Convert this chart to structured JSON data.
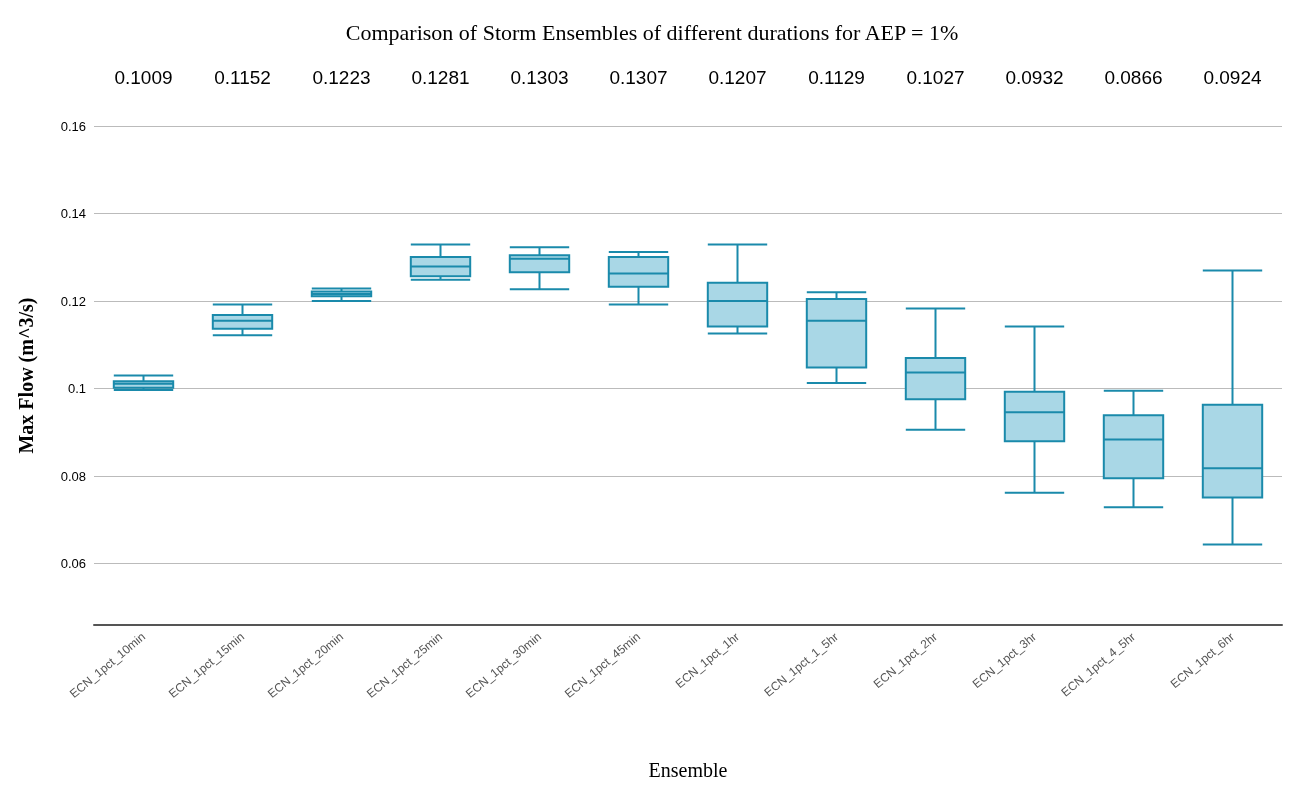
{
  "chart_data": {
    "type": "box",
    "title": "Comparison of Storm Ensembles of different durations for AEP = 1%",
    "xlabel": "Ensemble",
    "ylabel": "Max Flow (m^3/s)",
    "categories": [
      "ECN_1pct_10min",
      "ECN_1pct_15min",
      "ECN_1pct_20min",
      "ECN_1pct_25min",
      "ECN_1pct_30min",
      "ECN_1pct_45min",
      "ECN_1pct_1hr",
      "ECN_1pct_1_5hr",
      "ECN_1pct_2hr",
      "ECN_1pct_3hr",
      "ECN_1pct_4_5hr",
      "ECN_1pct_6hr"
    ],
    "annotations": [
      "0.1009",
      "0.1152",
      "0.1223",
      "0.1281",
      "0.1303",
      "0.1307",
      "0.1207",
      "0.1129",
      "0.1027",
      "0.0932",
      "0.0866",
      "0.0924"
    ],
    "series": [
      {
        "color": "#a9d7e6",
        "boxes": [
          {
            "low": 0.0997,
            "q1": 0.1002,
            "median": 0.1011,
            "q3": 0.1017,
            "high": 0.103
          },
          {
            "low": 0.1122,
            "q1": 0.1137,
            "median": 0.1155,
            "q3": 0.1168,
            "high": 0.1192
          },
          {
            "low": 0.12,
            "q1": 0.1211,
            "median": 0.1216,
            "q3": 0.1222,
            "high": 0.1229
          },
          {
            "low": 0.1249,
            "q1": 0.1257,
            "median": 0.1279,
            "q3": 0.1301,
            "high": 0.1329
          },
          {
            "low": 0.1227,
            "q1": 0.1266,
            "median": 0.1297,
            "q3": 0.1305,
            "high": 0.1323
          },
          {
            "low": 0.1192,
            "q1": 0.1233,
            "median": 0.1263,
            "q3": 0.1301,
            "high": 0.1312
          },
          {
            "low": 0.1126,
            "q1": 0.1142,
            "median": 0.12,
            "q3": 0.1242,
            "high": 0.1329
          },
          {
            "low": 0.1013,
            "q1": 0.1048,
            "median": 0.1155,
            "q3": 0.1205,
            "high": 0.122
          },
          {
            "low": 0.0906,
            "q1": 0.0976,
            "median": 0.1037,
            "q3": 0.107,
            "high": 0.1183
          },
          {
            "low": 0.0762,
            "q1": 0.088,
            "median": 0.0946,
            "q3": 0.0993,
            "high": 0.1142
          },
          {
            "low": 0.0729,
            "q1": 0.0795,
            "median": 0.0884,
            "q3": 0.0939,
            "high": 0.0995
          },
          {
            "low": 0.0644,
            "q1": 0.0751,
            "median": 0.0818,
            "q3": 0.0963,
            "high": 0.127
          }
        ]
      }
    ],
    "ylim": [
      0.046,
      0.16
    ],
    "yticks": [
      0.06,
      0.08,
      0.1,
      0.12,
      0.14,
      0.16
    ],
    "grid": "y"
  }
}
